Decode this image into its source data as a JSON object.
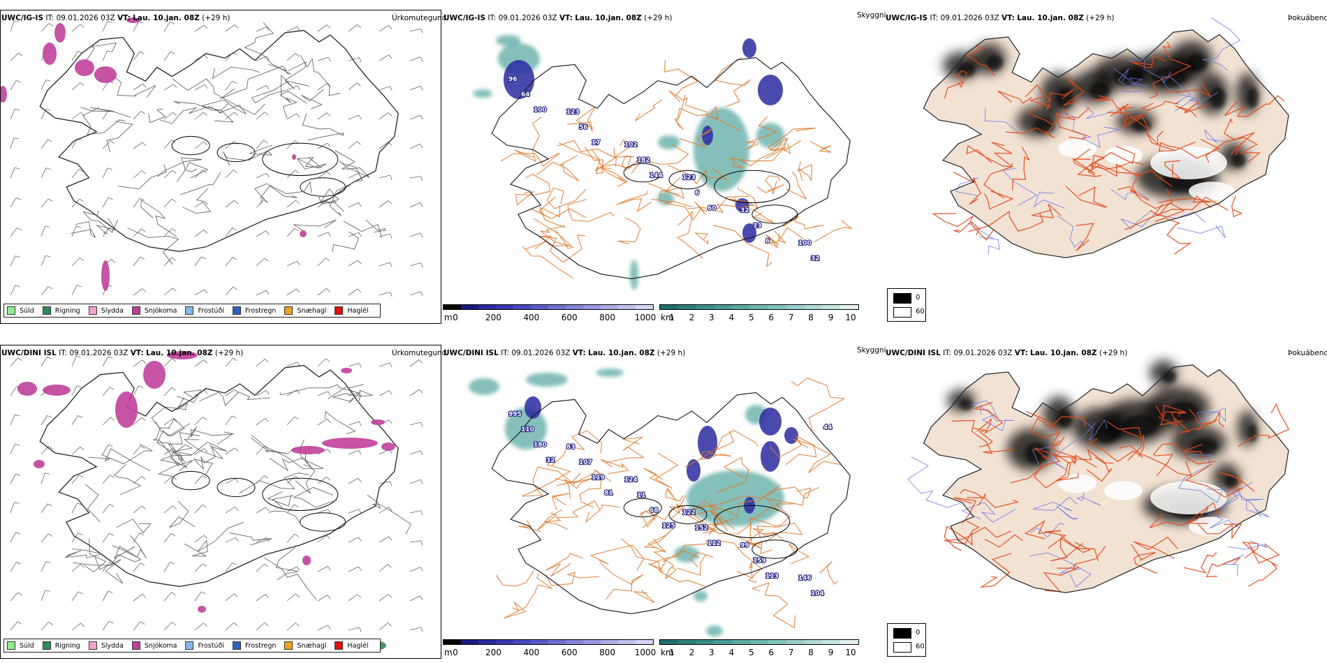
{
  "rows": [
    {
      "model": "UWC/IG-IS",
      "init_label": "IT:",
      "init_time": "09.01.2026 03Z",
      "valid_label": "VT:",
      "valid_time": "Lau. 10.jan. 08Z",
      "lead": "(+29 h)"
    },
    {
      "model": "UWC/DINI ISL",
      "init_label": "IT:",
      "init_time": "09.01.2026 03Z",
      "valid_label": "VT:",
      "valid_time": "Lau. 10.jan. 08Z",
      "lead": "(+29 h)"
    }
  ],
  "panel_titles": {
    "precip_type": "Úrkomutegund",
    "visibility": "Skyggni",
    "fog": "Þokuábendi"
  },
  "precip_legend": [
    {
      "label": "Súld",
      "color": "#90ee90"
    },
    {
      "label": "Rigning",
      "color": "#2e8b57"
    },
    {
      "label": "Slydda",
      "color": "#f4a3d0"
    },
    {
      "label": "Snjókoma",
      "color": "#c0409a"
    },
    {
      "label": "Frostúði",
      "color": "#87b7e8"
    },
    {
      "label": "Frostregn",
      "color": "#3060c0"
    },
    {
      "label": "Snæhagl",
      "color": "#f0a020"
    },
    {
      "label": "Haglél",
      "color": "#e01010"
    }
  ],
  "ceiling_scale": {
    "unit": "m",
    "ticks": [
      "0",
      "200",
      "400",
      "600",
      "800",
      "1000"
    ],
    "colors": [
      "#000000",
      "#1a1a80",
      "#2a2aa0",
      "#3838b0",
      "#4848c0",
      "#5c5cc8",
      "#7070d0",
      "#8484d8",
      "#9898e0",
      "#acace6",
      "#c0c0ee",
      "#d4d4f4"
    ]
  },
  "visibility_scale": {
    "unit": "km",
    "ticks": [
      "1",
      "2",
      "3",
      "4",
      "5",
      "6",
      "7",
      "8",
      "9",
      "10"
    ],
    "colors": [
      "#1f6f6a",
      "#2c7f79",
      "#3a8e88",
      "#4a9c96",
      "#5ba9a3",
      "#6db6b0",
      "#82c2bc",
      "#98cec9",
      "#afdad6",
      "#c8e6e3",
      "#e4f3f1"
    ]
  },
  "fog_key": {
    "high_label": "0",
    "low_label": "60",
    "high_color": "#000000",
    "low_color": "#ffffff"
  },
  "ceiling_labels_row1": [
    "96",
    "123",
    "102",
    "123",
    "32",
    "100",
    "64",
    "56",
    "182",
    "6",
    "13",
    "32",
    "100",
    "17",
    "144",
    "60",
    "6"
  ],
  "ceiling_labels_row2": [
    "995",
    "83",
    "124",
    "122",
    "99",
    "146",
    "110",
    "107",
    "11",
    "152",
    "159",
    "104",
    "180",
    "119",
    "68",
    "112",
    "113",
    "44",
    "32",
    "81",
    "125"
  ],
  "colors": {
    "coast": "#000000",
    "roads": "#e07a30",
    "fog_land": "#f2e2d4",
    "fog_roads": "#e24a1c",
    "fog_rivers": "#6b7be0"
  }
}
